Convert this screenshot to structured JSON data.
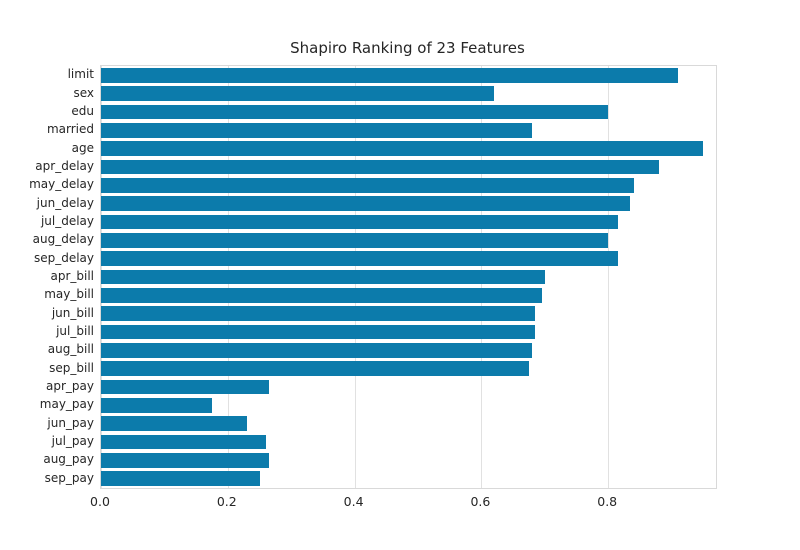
{
  "chart_data": {
    "type": "bar",
    "orientation": "horizontal",
    "title": "Shapiro Ranking of 23 Features",
    "categories": [
      "limit",
      "sex",
      "edu",
      "married",
      "age",
      "apr_delay",
      "may_delay",
      "jun_delay",
      "jul_delay",
      "aug_delay",
      "sep_delay",
      "apr_bill",
      "may_bill",
      "jun_bill",
      "jul_bill",
      "aug_bill",
      "sep_bill",
      "apr_pay",
      "may_pay",
      "jun_pay",
      "jul_pay",
      "aug_pay",
      "sep_pay"
    ],
    "values": [
      0.91,
      0.62,
      0.8,
      0.68,
      0.95,
      0.88,
      0.84,
      0.835,
      0.815,
      0.8,
      0.815,
      0.7,
      0.695,
      0.685,
      0.685,
      0.68,
      0.675,
      0.265,
      0.175,
      0.23,
      0.26,
      0.265,
      0.25
    ],
    "xlabel": "",
    "ylabel": "",
    "xlim": [
      0.0,
      0.97
    ],
    "xticks": [
      0.0,
      0.2,
      0.4,
      0.6,
      0.8
    ],
    "xtick_labels": [
      "0.0",
      "0.2",
      "0.4",
      "0.6",
      "0.8"
    ],
    "grid": true,
    "legend": "none",
    "bar_color": "#0c7bab",
    "grid_color": "#e1e1e1",
    "text_color": "#262626"
  }
}
